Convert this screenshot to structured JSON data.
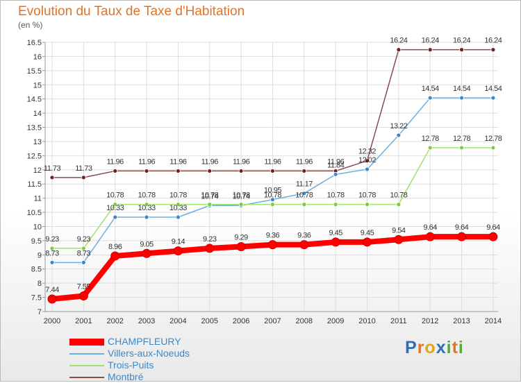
{
  "chart_data": {
    "type": "line",
    "title": "Evolution du Taux de Taxe d'Habitation",
    "unit_label": "(en %)",
    "x": [
      "2000",
      "2001",
      "2002",
      "2003",
      "2004",
      "2005",
      "2006",
      "2007",
      "2008",
      "2009",
      "2010",
      "2011",
      "2012",
      "2013",
      "2014"
    ],
    "y_ticks": [
      "7",
      "7.5",
      "8",
      "8.5",
      "9",
      "9.5",
      "10",
      "10.5",
      "11",
      "11.5",
      "12",
      "12.5",
      "13",
      "13.5",
      "14",
      "14.5",
      "15",
      "15.5",
      "16",
      "16.5"
    ],
    "ylim": [
      7,
      16.5
    ],
    "series": [
      {
        "name": "CHAMPFLEURY",
        "color": "#ff0000",
        "values": [
          7.44,
          7.55,
          8.96,
          9.05,
          9.14,
          9.23,
          9.29,
          9.36,
          9.36,
          9.45,
          9.45,
          9.54,
          9.64,
          9.64,
          9.64
        ],
        "labels": [
          "7.44",
          "7.55",
          "8.96",
          "9.05",
          "9.14",
          "9.23",
          "9.29",
          "9.36",
          "9.36",
          "9.45",
          "9.45",
          "9.54",
          "9.64",
          "9.64",
          "9.64"
        ]
      },
      {
        "name": "Villers-aux-Noeuds",
        "color": "#6aaee0",
        "marker": "#3d87c8",
        "values": [
          8.73,
          8.73,
          10.33,
          10.33,
          10.33,
          10.74,
          10.74,
          10.95,
          11.17,
          11.84,
          12.02,
          13.22,
          14.54,
          14.54,
          14.54
        ],
        "labels": [
          "8.73",
          "8.73",
          "10.33",
          "10.33",
          "10.33",
          "10.74",
          "10.74",
          "10.95",
          "11.17",
          "11.84",
          "12.02",
          "13.22",
          "14.54",
          "14.54",
          "14.54"
        ]
      },
      {
        "name": "Trois-Puits",
        "color": "#9ee06a",
        "marker": "#7fc94a",
        "values": [
          9.23,
          9.23,
          10.78,
          10.78,
          10.78,
          10.78,
          10.78,
          10.78,
          10.78,
          10.78,
          10.78,
          10.78,
          12.78,
          12.78,
          12.78
        ],
        "labels": [
          "9.23",
          "9.23",
          "10.78",
          "10.78",
          "10.78",
          "10.78",
          "10.78",
          "10.78",
          "10.78",
          "10.78",
          "10.78",
          "10.78",
          "12.78",
          "12.78",
          "12.78"
        ]
      },
      {
        "name": "Montbré",
        "color": "#8b4a4a",
        "marker": "#6e2222",
        "values": [
          11.73,
          11.73,
          11.96,
          11.96,
          11.96,
          11.96,
          11.96,
          11.96,
          11.96,
          11.96,
          12.32,
          16.24,
          16.24,
          16.24,
          16.24
        ],
        "labels": [
          "11.73",
          "11.73",
          "11.96",
          "11.96",
          "11.96",
          "11.96",
          "11.96",
          "11.96",
          "11.96",
          "11.96",
          "12.32",
          "16.24",
          "16.24",
          "16.24",
          "16.24"
        ]
      }
    ],
    "legend": [
      {
        "name": "CHAMPFLEURY",
        "color": "#ff0000"
      },
      {
        "name": "Villers-aux-Noeuds",
        "color": "#6aaee0"
      },
      {
        "name": "Trois-Puits",
        "color": "#9ee06a"
      },
      {
        "name": "Montbré",
        "color": "#8b4a4a"
      }
    ],
    "legend_placement": "bottom-left",
    "grid": true
  },
  "logo": {
    "letters": [
      "P",
      "r",
      "o",
      "x",
      "i",
      "t",
      "i"
    ],
    "colors": [
      "#2d6fb5",
      "#e8731f",
      "#e2a51a",
      "#2d6fb5",
      "#58a83c",
      "#e8731f",
      "#58a83c"
    ]
  }
}
